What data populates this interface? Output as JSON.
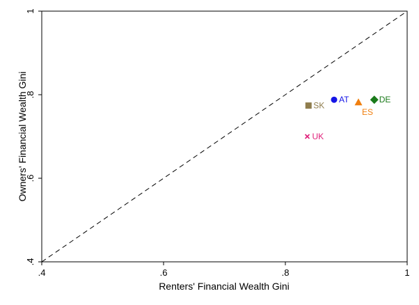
{
  "chart_data": {
    "type": "scatter",
    "xlabel": "Renters' Financial Wealth Gini",
    "ylabel": "Owners' Financial Wealth Gini",
    "xlim": [
      0.4,
      1.0
    ],
    "ylim": [
      0.4,
      1.0
    ],
    "x_ticks": [
      ".4",
      ".6",
      ".8",
      "1"
    ],
    "y_ticks": [
      ".4",
      ".6",
      ".8",
      "1"
    ],
    "grid": false,
    "reference_line": {
      "type": "45-degree dashed",
      "from": [
        0.4,
        0.4
      ],
      "to": [
        1.0,
        1.0
      ]
    },
    "points": [
      {
        "label": "AT",
        "x": 0.88,
        "y": 0.788,
        "marker": "circle",
        "color": "#1515e6",
        "label_position": "right"
      },
      {
        "label": "DE",
        "x": 0.946,
        "y": 0.788,
        "marker": "diamond",
        "color": "#1a7a1a",
        "label_position": "right"
      },
      {
        "label": "ES",
        "x": 0.92,
        "y": 0.782,
        "marker": "triangle",
        "color": "#f07f0f",
        "label_position": "below-right"
      },
      {
        "label": "SK",
        "x": 0.838,
        "y": 0.774,
        "marker": "square",
        "color": "#8f7d4d",
        "label_position": "right"
      },
      {
        "label": "UK",
        "x": 0.836,
        "y": 0.7,
        "marker": "x",
        "color": "#e0207a",
        "label_position": "right"
      }
    ]
  }
}
